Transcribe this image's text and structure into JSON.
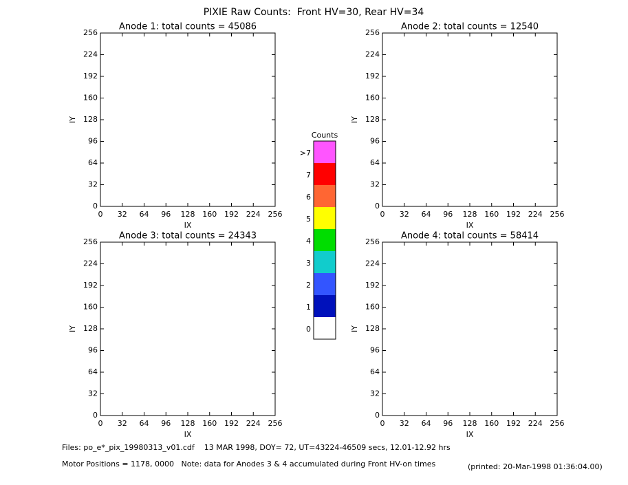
{
  "title": "PIXIE Raw Counts:  Front HV=30, Rear HV=34",
  "chart_data": [
    {
      "type": "heatmap",
      "title": "Anode 1: total counts = 45086",
      "xlabel": "IX",
      "ylabel": "IY",
      "xlim": [
        0,
        256
      ],
      "ylim": [
        0,
        256
      ],
      "xticks": [
        0,
        32,
        64,
        96,
        128,
        160,
        192,
        224,
        256
      ],
      "yticks": [
        0,
        32,
        64,
        96,
        128,
        160,
        192,
        224,
        256
      ]
    },
    {
      "type": "heatmap",
      "title": "Anode 2: total counts = 12540",
      "xlabel": "IX",
      "ylabel": "IY",
      "xlim": [
        0,
        256
      ],
      "ylim": [
        0,
        256
      ],
      "xticks": [
        0,
        32,
        64,
        96,
        128,
        160,
        192,
        224,
        256
      ],
      "yticks": [
        0,
        32,
        64,
        96,
        128,
        160,
        192,
        224,
        256
      ]
    },
    {
      "type": "heatmap",
      "title": "Anode 3: total counts = 24343",
      "xlabel": "IX",
      "ylabel": "IY",
      "xlim": [
        0,
        256
      ],
      "ylim": [
        0,
        256
      ],
      "xticks": [
        0,
        32,
        64,
        96,
        128,
        160,
        192,
        224,
        256
      ],
      "yticks": [
        0,
        32,
        64,
        96,
        128,
        160,
        192,
        224,
        256
      ]
    },
    {
      "type": "heatmap",
      "title": "Anode 4: total counts = 58414",
      "xlabel": "IX",
      "ylabel": "IY",
      "xlim": [
        0,
        256
      ],
      "ylim": [
        0,
        256
      ],
      "xticks": [
        0,
        32,
        64,
        96,
        128,
        160,
        192,
        224,
        256
      ],
      "yticks": [
        0,
        32,
        64,
        96,
        128,
        160,
        192,
        224,
        256
      ]
    }
  ],
  "colorbar": {
    "title": "Counts",
    "levels": [
      {
        "label": ">7",
        "color": "#ff55ff"
      },
      {
        "label": "7",
        "color": "#ff0000"
      },
      {
        "label": "6",
        "color": "#ff6633"
      },
      {
        "label": "5",
        "color": "#ffff00"
      },
      {
        "label": "4",
        "color": "#00dd00"
      },
      {
        "label": "3",
        "color": "#11cccc"
      },
      {
        "label": "2",
        "color": "#3355ff"
      },
      {
        "label": "1",
        "color": "#0011bb"
      },
      {
        "label": "0",
        "color": "#ffffff"
      }
    ]
  },
  "footer": {
    "files": "Files: po_e*_pix_19980313_v01.cdf    13 MAR 1998, DOY= 72, UT=43224-46509 secs, 12.01-12.92 hrs",
    "motor": "Motor Positions = 1178, 0000   Note: data for Anodes 3 & 4 accumulated during Front HV-on times",
    "printed": "(printed: 20-Mar-1998 01:36:04.00)"
  }
}
